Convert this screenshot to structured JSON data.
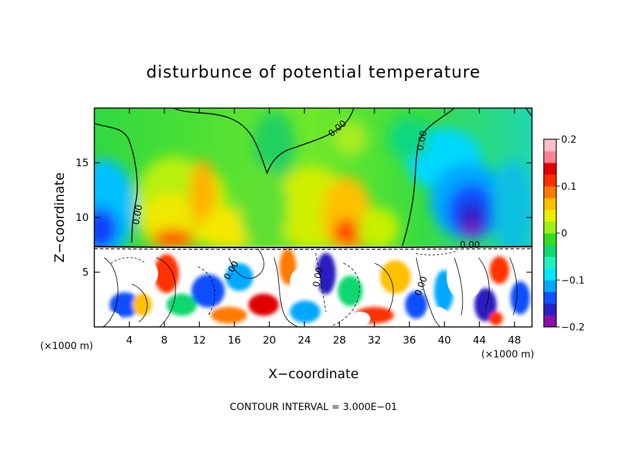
{
  "chart_data": {
    "type": "heatmap",
    "title": "disturbunce of potential temperature",
    "xlabel": "X−coordinate",
    "ylabel": "Z−coordinate",
    "x_unit_label": "(×1000 m)",
    "xlim": [
      0,
      50
    ],
    "ylim": [
      0,
      20
    ],
    "x_ticks": [
      4,
      8,
      12,
      16,
      20,
      24,
      28,
      32,
      36,
      40,
      44,
      48
    ],
    "x_tick_labels": [
      "4",
      "8",
      "12",
      "16",
      "20",
      "24",
      "28",
      "32",
      "36",
      "40",
      "44",
      "48"
    ],
    "y_ticks": [
      5,
      10,
      15
    ],
    "y_tick_labels": [
      "5",
      "10",
      "15"
    ],
    "colorbar": {
      "range": [
        -0.2,
        0.2
      ],
      "ticks": [
        0.2,
        0.1,
        0,
        -0.1,
        -0.2
      ],
      "tick_labels": [
        "0.2",
        "0.1",
        "0",
        "−0.1",
        "−0.2"
      ],
      "colors": [
        "#8b0fa8",
        "#2a1fc0",
        "#1050ff",
        "#00a8ff",
        "#00e8ff",
        "#20f0c0",
        "#10d870",
        "#30e020",
        "#9ef01a",
        "#e8f000",
        "#ffc000",
        "#ff7a00",
        "#ff3000",
        "#e00000",
        "#ff8090",
        "#ffc0c8"
      ]
    },
    "contour_labels": [
      "0.00",
      "0.00",
      "0.00",
      "0.00",
      "0.00",
      "0.00",
      "0.00"
    ],
    "contour_interval_text": "CONTOUR INTERVAL = 3.000E−01"
  }
}
